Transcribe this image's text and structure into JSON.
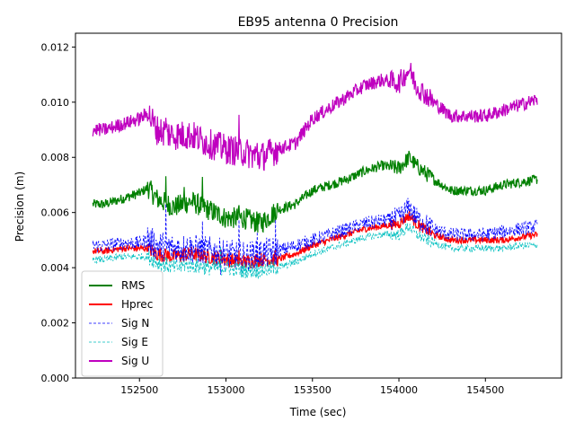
{
  "chart_data": {
    "type": "line",
    "title": "EB95 antenna 0 Precision",
    "xlabel": "Time (sec)",
    "ylabel": "Precision (m)",
    "xlim": [
      152130,
      154940
    ],
    "ylim": [
      0.0,
      0.0125
    ],
    "xticks": [
      152500,
      153000,
      153500,
      154000,
      154500
    ],
    "xtick_labels": [
      "152500",
      "153000",
      "153500",
      "154000",
      "154500"
    ],
    "yticks": [
      0.0,
      0.002,
      0.004,
      0.006,
      0.008,
      0.01,
      0.012
    ],
    "ytick_labels": [
      "0.000",
      "0.002",
      "0.004",
      "0.006",
      "0.008",
      "0.010",
      "0.012"
    ],
    "grid": false,
    "legend_position": "lower-left",
    "x": [
      152230,
      152300,
      152400,
      152500,
      152550,
      152600,
      152700,
      152800,
      152900,
      153000,
      153100,
      153200,
      153300,
      153400,
      153500,
      153600,
      153700,
      153800,
      153900,
      154000,
      154060,
      154100,
      154200,
      154300,
      154400,
      154500,
      154600,
      154700,
      154800
    ],
    "series": [
      {
        "name": "RMS",
        "color": "#008000",
        "style": "solid",
        "noise": 0.00018,
        "values": [
          0.0063,
          0.0063,
          0.0065,
          0.0067,
          0.0069,
          0.0065,
          0.0062,
          0.0064,
          0.0061,
          0.0058,
          0.0058,
          0.0056,
          0.0061,
          0.0063,
          0.0068,
          0.007,
          0.0072,
          0.0075,
          0.0077,
          0.0076,
          0.008,
          0.0077,
          0.0072,
          0.0068,
          0.0068,
          0.0068,
          0.007,
          0.0071,
          0.0072
        ]
      },
      {
        "name": "Hprec",
        "color": "#ff0000",
        "style": "solid",
        "noise": 0.00012,
        "values": [
          0.0046,
          0.0046,
          0.0047,
          0.0047,
          0.0047,
          0.0045,
          0.0044,
          0.0045,
          0.0044,
          0.0043,
          0.0042,
          0.0043,
          0.0043,
          0.0045,
          0.0048,
          0.005,
          0.0052,
          0.0054,
          0.0055,
          0.0056,
          0.0059,
          0.0056,
          0.0052,
          0.005,
          0.005,
          0.005,
          0.005,
          0.0051,
          0.0052
        ]
      },
      {
        "name": "Sig N",
        "color": "#0000ff",
        "style": "dashed",
        "noise": 0.00025,
        "values": [
          0.0048,
          0.0048,
          0.0049,
          0.0049,
          0.005,
          0.0048,
          0.0047,
          0.0047,
          0.0046,
          0.0045,
          0.0044,
          0.0045,
          0.0046,
          0.0048,
          0.005,
          0.0052,
          0.0054,
          0.0056,
          0.0057,
          0.0058,
          0.0062,
          0.0058,
          0.0054,
          0.0052,
          0.0052,
          0.0052,
          0.0053,
          0.0054,
          0.0055
        ]
      },
      {
        "name": "Sig E",
        "color": "#00bfbf",
        "style": "dashed",
        "noise": 0.00013,
        "values": [
          0.0043,
          0.0043,
          0.0044,
          0.0044,
          0.0044,
          0.0042,
          0.004,
          0.0041,
          0.004,
          0.004,
          0.0039,
          0.0039,
          0.004,
          0.0042,
          0.0045,
          0.0047,
          0.0049,
          0.0051,
          0.0052,
          0.0052,
          0.0055,
          0.0052,
          0.0049,
          0.0047,
          0.0047,
          0.0047,
          0.0047,
          0.0048,
          0.0048
        ]
      },
      {
        "name": "Sig U",
        "color": "#bf00bf",
        "style": "solid",
        "noise": 0.00025,
        "values": [
          0.009,
          0.009,
          0.0092,
          0.0094,
          0.0096,
          0.009,
          0.0088,
          0.0088,
          0.0085,
          0.0083,
          0.0082,
          0.008,
          0.0083,
          0.0085,
          0.0094,
          0.0098,
          0.0102,
          0.0106,
          0.0108,
          0.0107,
          0.0112,
          0.0106,
          0.01,
          0.0095,
          0.0095,
          0.0095,
          0.0097,
          0.0099,
          0.0101
        ]
      }
    ]
  }
}
